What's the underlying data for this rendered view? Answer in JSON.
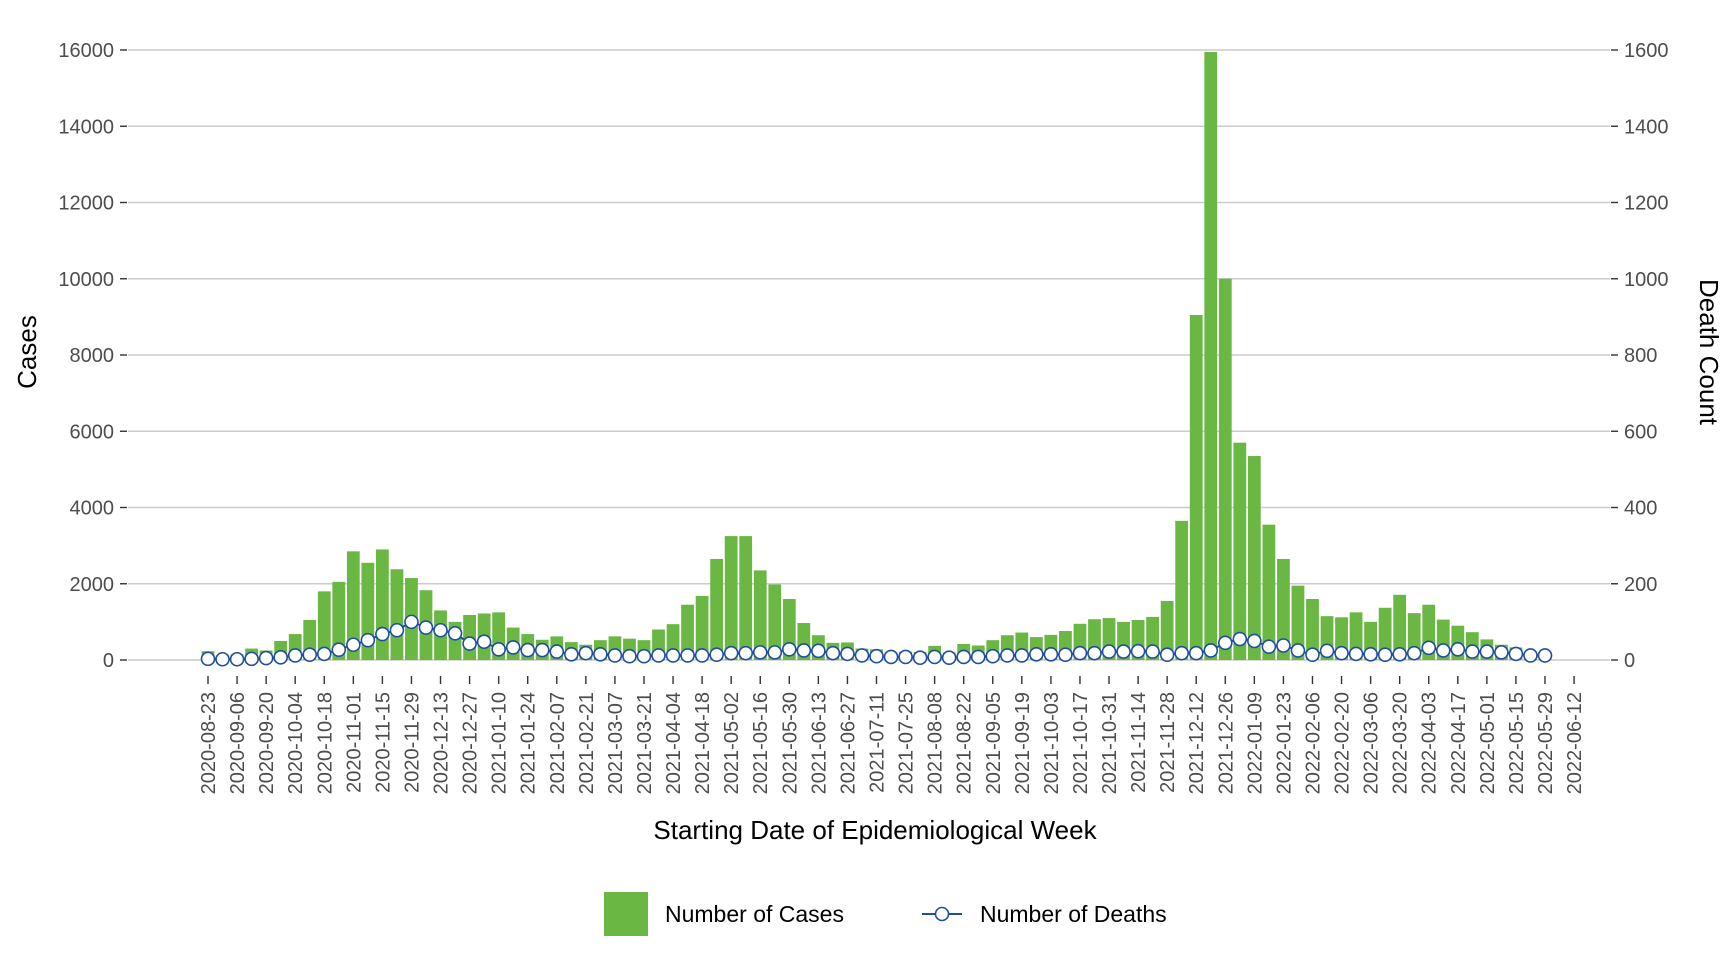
{
  "chart_data": {
    "type": "bar+line",
    "xlabel": "Starting Date of Epidemiological Week",
    "ylabel_left": "Cases",
    "ylabel_right": "Death Count",
    "ylim_left": [
      0,
      16000
    ],
    "ylim_right": [
      0,
      1600
    ],
    "y_ticks_left": [
      0,
      2000,
      4000,
      6000,
      8000,
      10000,
      12000,
      14000,
      16000
    ],
    "y_ticks_right": [
      0,
      200,
      400,
      600,
      800,
      1000,
      1200,
      1400,
      1600
    ],
    "x_tick_labels": [
      "2020-08-23",
      "2020-09-06",
      "2020-09-20",
      "2020-10-04",
      "2020-10-18",
      "2020-11-01",
      "2020-11-15",
      "2020-11-29",
      "2020-12-13",
      "2020-12-27",
      "2021-01-10",
      "2021-01-24",
      "2021-02-07",
      "2021-02-21",
      "2021-03-07",
      "2021-03-21",
      "2021-04-04",
      "2021-04-18",
      "2021-05-02",
      "2021-05-16",
      "2021-05-30",
      "2021-06-13",
      "2021-06-27",
      "2021-07-11",
      "2021-07-25",
      "2021-08-08",
      "2021-08-22",
      "2021-09-05",
      "2021-09-19",
      "2021-10-03",
      "2021-10-17",
      "2021-10-31",
      "2021-11-14",
      "2021-11-28",
      "2021-12-12",
      "2021-12-26",
      "2022-01-09",
      "2022-01-23",
      "2022-02-06",
      "2022-02-20",
      "2022-03-06",
      "2022-03-20",
      "2022-04-03",
      "2022-04-17",
      "2022-05-01",
      "2022-05-15",
      "2022-05-29",
      "2022-06-12"
    ],
    "grid": "horizontal",
    "legend_position": "bottom",
    "series": [
      {
        "name": "Number of Cases",
        "type": "bar",
        "axis": "left",
        "color": "#6ab843",
        "values": [
          230,
          120,
          150,
          300,
          250,
          500,
          680,
          1050,
          1800,
          2050,
          2850,
          2550,
          2900,
          2380,
          2150,
          1830,
          1300,
          1000,
          1180,
          1220,
          1250,
          850,
          680,
          530,
          620,
          470,
          400,
          520,
          620,
          560,
          520,
          800,
          940,
          1450,
          1680,
          2650,
          3250,
          3250,
          2350,
          1980,
          1600,
          970,
          650,
          450,
          460,
          300,
          280,
          200,
          220,
          210,
          370,
          200,
          420,
          380,
          520,
          650,
          720,
          600,
          660,
          760,
          950,
          1070,
          1100,
          1000,
          1050,
          1130,
          1550,
          3650,
          9050,
          15950,
          10000,
          5700,
          5350,
          3550,
          2650,
          1950,
          1600,
          1150,
          1120,
          1250,
          1000,
          1370,
          1710,
          1230,
          1450,
          1060,
          900,
          730,
          540,
          400,
          330,
          210,
          180
        ]
      },
      {
        "name": "Number of Deaths",
        "type": "line",
        "axis": "right",
        "color": "#1f4e9e",
        "values": [
          3,
          2,
          2,
          3,
          5,
          7,
          12,
          14,
          16,
          27,
          40,
          52,
          68,
          78,
          100,
          85,
          78,
          70,
          43,
          48,
          28,
          33,
          26,
          26,
          22,
          15,
          18,
          15,
          12,
          10,
          10,
          12,
          12,
          12,
          12,
          14,
          18,
          18,
          20,
          20,
          28,
          25,
          24,
          18,
          16,
          12,
          10,
          8,
          8,
          6,
          8,
          6,
          8,
          8,
          10,
          12,
          12,
          15,
          15,
          14,
          18,
          18,
          22,
          22,
          23,
          22,
          14,
          18,
          18,
          25,
          45,
          55,
          50,
          35,
          38,
          25,
          14,
          24,
          18,
          16,
          15,
          14,
          15,
          18,
          32,
          25,
          28,
          22,
          22,
          20,
          16,
          12,
          12
        ]
      }
    ]
  }
}
